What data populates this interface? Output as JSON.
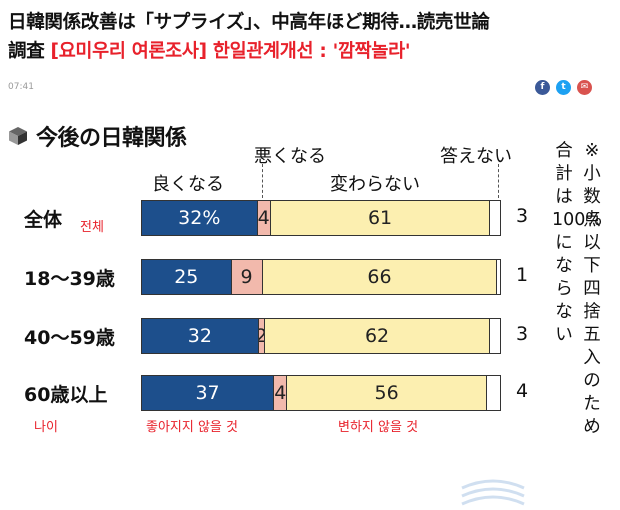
{
  "article": {
    "headline_jp": "日韓関係改善は「サプライズ」、中高年ほど期待…読売世論",
    "headline_jp2": "調査",
    "headline_kr": " [요미우리 여론조사] 한일관계개선 : '깜짝놀라'",
    "timestamp": "07:41"
  },
  "share": {
    "facebook": "f",
    "twitter": "t",
    "mail": "✉"
  },
  "chart": {
    "title": "今後の日韓関係",
    "headers": {
      "good": "良くなる",
      "bad": "悪くなる",
      "same": "変わらない",
      "na": "答えない"
    },
    "note_columns": [
      "※小数点以下四捨五入のため",
      "合計は100%にならない"
    ],
    "korean_labels": {
      "total": "전체",
      "age": "나이",
      "bad": "좋아지지 않을 것",
      "same": "변하지 않을 것"
    }
  },
  "chart_data": {
    "type": "bar",
    "stacked": true,
    "title": "今後の日韓関係",
    "categories": [
      "全体",
      "18〜39歳",
      "40〜59歳",
      "60歳以上"
    ],
    "series": [
      {
        "name": "良くなる",
        "values": [
          32,
          25,
          32,
          37
        ],
        "labels": [
          "32%",
          "25",
          "32",
          "37"
        ],
        "color": "#1d4f8c"
      },
      {
        "name": "悪くなる",
        "values": [
          4,
          9,
          2,
          4
        ],
        "labels": [
          "4",
          "9",
          "2",
          "4"
        ],
        "color": "#f2b9ac"
      },
      {
        "name": "変わらない",
        "values": [
          61,
          66,
          62,
          56
        ],
        "labels": [
          "61",
          "66",
          "62",
          "56"
        ],
        "color": "#fcefb0"
      },
      {
        "name": "答えない",
        "values": [
          3,
          1,
          3,
          4
        ],
        "labels": [
          "3",
          "1",
          "3",
          "4"
        ],
        "color": "#ffffff"
      }
    ]
  }
}
